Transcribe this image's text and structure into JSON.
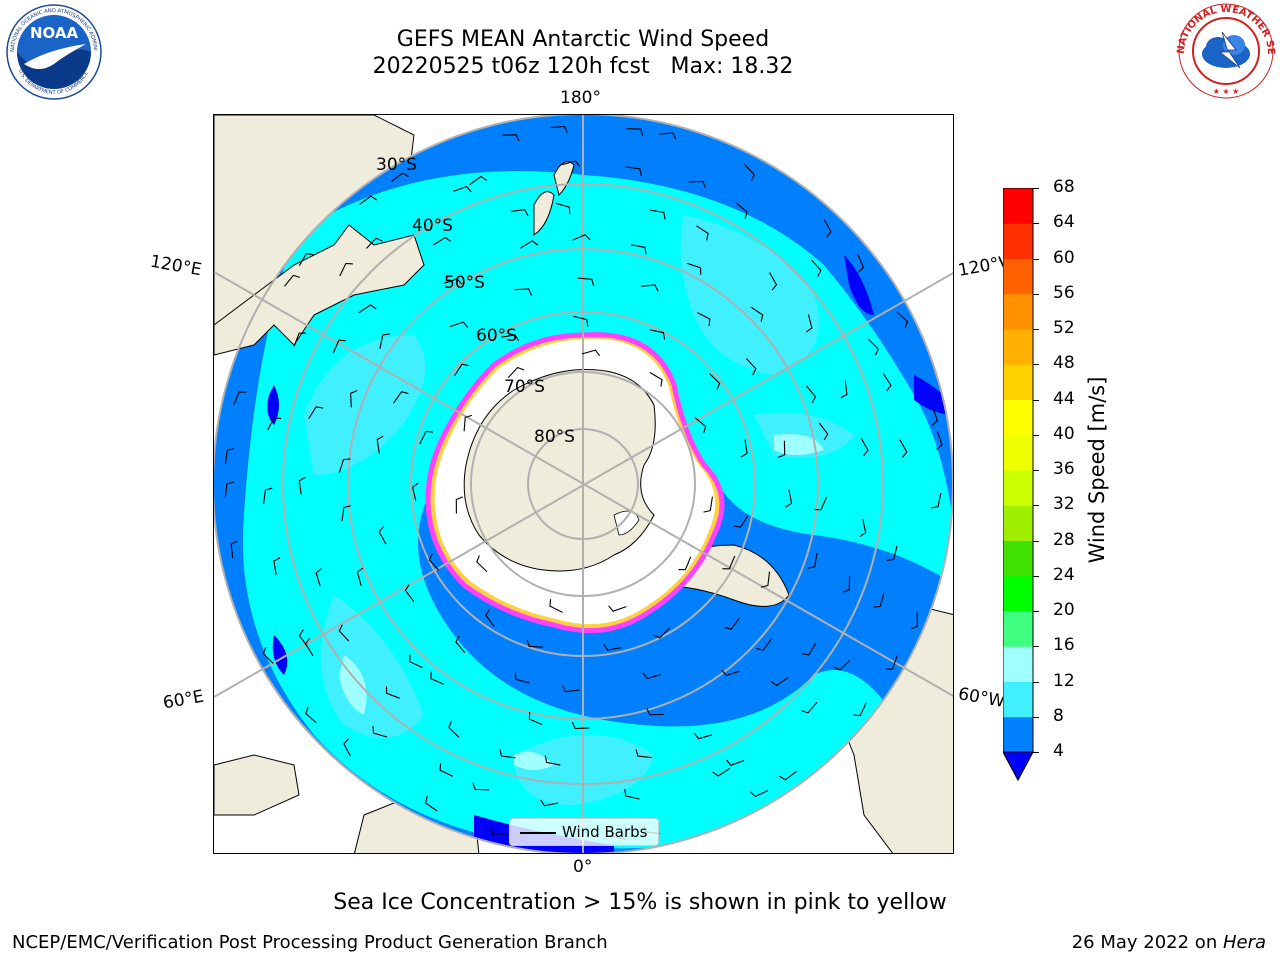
{
  "header": {
    "title_line1": "GEFS MEAN Antarctic Wind Speed",
    "title_line2": "20220525 t06z 120h fcst   Max: 18.32"
  },
  "logos": {
    "noaa": {
      "center_text": "NOAA",
      "ring_text": "NATIONAL OCEANIC AND ATMOSPHERIC ADMINISTRATION",
      "bottom_text": "U.S. DEPARTMENT OF COMMERCE"
    },
    "nws": {
      "ring_text": "NATIONAL WEATHER SERVICE"
    }
  },
  "map": {
    "longitude_labels": {
      "top": "180°",
      "bottom": "0°",
      "upper_left": "120°E",
      "upper_right": "120°W",
      "lower_left": "60°E",
      "lower_right": "60°W"
    },
    "latitude_labels": [
      "30°S",
      "40°S",
      "50°S",
      "60°S",
      "70°S",
      "80°S"
    ],
    "legend_label": "Wind Barbs",
    "colors": {
      "land": "#efecdc",
      "ice_interior": "#ffffff",
      "ice_edge": [
        "#ff40ff",
        "#ffb0ff",
        "#ffd040"
      ],
      "wind_4_8": "#0080ff",
      "wind_8_12": "#00ffff",
      "wind_12_16": "#40f0ff",
      "wind_16_20": "#a0ffff",
      "deep_blue": "#0000ff"
    }
  },
  "colorbar": {
    "label": "Wind Speed [m/s]",
    "ticks": [
      "4",
      "8",
      "12",
      "16",
      "20",
      "24",
      "28",
      "32",
      "36",
      "40",
      "44",
      "48",
      "52",
      "56",
      "60",
      "64",
      "68"
    ],
    "colors": [
      "#0080ff",
      "#00ffff",
      "#40f0ff",
      "#a0ffff",
      "#40ff80",
      "#00ff00",
      "#40e000",
      "#a0ee00",
      "#ccff00",
      "#eeff00",
      "#ffff00",
      "#ffd000",
      "#ffb000",
      "#ff9000",
      "#ff6000",
      "#ff3000",
      "#ff0000"
    ],
    "under_color": "#0000ff"
  },
  "subtitle": "Sea Ice Concentration > 15% is shown in pink to yellow",
  "footer": {
    "left": "NCEP/EMC/Verification Post Processing Product Generation Branch",
    "right_text": "26 May 2022 on ",
    "right_italic": "Hera"
  }
}
